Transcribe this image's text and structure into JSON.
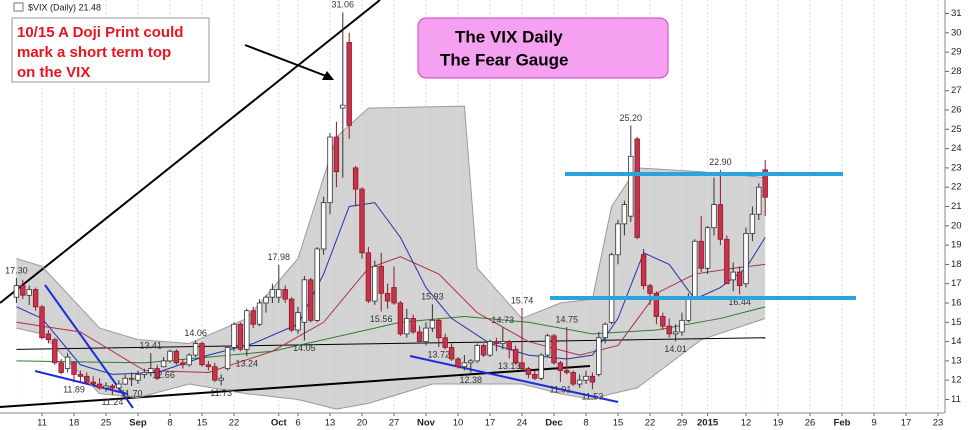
{
  "chart_data": {
    "type": "candlestick",
    "title": "$VIX (Daily) 21.48",
    "categories": [
      null,
      null,
      null,
      null,
      "11",
      null,
      null,
      null,
      null,
      "18",
      null,
      null,
      null,
      null,
      "25",
      null,
      null,
      null,
      null,
      "Sep",
      null,
      null,
      null,
      null,
      "8",
      null,
      null,
      null,
      null,
      "15",
      null,
      null,
      null,
      null,
      "22",
      null,
      null,
      null,
      null,
      null,
      null,
      "Oct",
      null,
      null,
      "6",
      null,
      null,
      null,
      null,
      "13",
      null,
      null,
      null,
      null,
      "20",
      null,
      null,
      null,
      null,
      "27",
      null,
      null,
      null,
      null,
      "Nov",
      null,
      null,
      null,
      null,
      "10",
      null,
      null,
      null,
      null,
      "17",
      null,
      null,
      null,
      null,
      "24",
      null,
      null,
      null,
      null,
      "Dec",
      null,
      null,
      null,
      null,
      "8",
      null,
      null,
      null,
      null,
      "15",
      null,
      null,
      null,
      null,
      "22",
      null,
      null,
      null,
      null,
      "29",
      null,
      null,
      null,
      "2015",
      null,
      null,
      null,
      null,
      null,
      "12",
      null,
      null,
      null,
      null,
      "19",
      null,
      null,
      null,
      null,
      "26",
      null,
      null,
      null,
      null,
      "Feb",
      null,
      null,
      null,
      null,
      "9",
      null,
      null,
      null,
      null,
      "17",
      null,
      null,
      null,
      null,
      "23"
    ],
    "ohlc": [
      [
        16.3,
        17.3,
        16.0,
        16.9
      ],
      [
        16.9,
        17.2,
        16.2,
        16.4
      ],
      [
        16.4,
        16.9,
        15.9,
        16.7
      ],
      [
        16.7,
        16.8,
        15.6,
        15.8
      ],
      [
        15.8,
        15.9,
        14.1,
        14.2
      ],
      [
        14.4,
        14.6,
        13.9,
        14.1
      ],
      [
        14.1,
        14.2,
        12.8,
        12.9
      ],
      [
        12.9,
        13.1,
        12.3,
        12.4
      ],
      [
        12.6,
        13.4,
        12.4,
        13.2
      ],
      [
        12.9,
        13.0,
        11.89,
        12.3
      ],
      [
        12.3,
        12.5,
        11.9,
        12.2
      ],
      [
        12.2,
        12.4,
        11.8,
        11.9
      ],
      [
        11.9,
        12.2,
        11.7,
        11.8
      ],
      [
        11.8,
        12.1,
        11.5,
        11.6
      ],
      [
        11.6,
        11.9,
        11.4,
        11.7
      ],
      [
        11.7,
        11.8,
        11.24,
        11.6
      ],
      [
        11.6,
        12.0,
        11.5,
        11.8
      ],
      [
        11.8,
        12.3,
        11.75,
        12.1
      ],
      [
        12.1,
        12.4,
        11.7,
        12.1
      ],
      [
        12.0,
        12.5,
        11.8,
        12.3
      ],
      [
        12.3,
        12.6,
        12.1,
        12.4
      ],
      [
        12.4,
        13.41,
        12.2,
        12.6
      ],
      [
        12.6,
        12.8,
        12.0,
        12.1
      ],
      [
        12.7,
        13.2,
        12.66,
        13.0
      ],
      [
        13.0,
        13.6,
        12.9,
        13.5
      ],
      [
        13.5,
        13.6,
        12.8,
        12.9
      ],
      [
        12.9,
        13.1,
        12.6,
        12.8
      ],
      [
        12.8,
        13.4,
        12.7,
        13.3
      ],
      [
        13.3,
        14.06,
        13.2,
        13.9
      ],
      [
        13.9,
        14.0,
        12.7,
        12.8
      ],
      [
        12.8,
        13.0,
        12.5,
        12.7
      ],
      [
        12.7,
        12.9,
        11.9,
        12.0
      ],
      [
        12.0,
        12.3,
        11.73,
        12.1
      ],
      [
        12.6,
        13.8,
        12.5,
        13.7
      ],
      [
        13.7,
        15.0,
        13.5,
        14.9
      ],
      [
        14.9,
        15.0,
        13.5,
        13.6
      ],
      [
        13.6,
        15.7,
        13.24,
        15.6
      ],
      [
        15.6,
        15.8,
        14.7,
        14.9
      ],
      [
        14.9,
        16.2,
        14.8,
        16.0
      ],
      [
        16.0,
        16.4,
        15.5,
        16.3
      ],
      [
        16.3,
        17.0,
        16.0,
        16.7
      ],
      [
        16.3,
        17.98,
        16.0,
        16.7
      ],
      [
        16.7,
        16.9,
        16.0,
        16.2
      ],
      [
        16.2,
        16.3,
        14.5,
        14.6
      ],
      [
        14.6,
        15.8,
        14.4,
        15.5
      ],
      [
        15.0,
        17.4,
        14.05,
        17.2
      ],
      [
        17.2,
        17.3,
        15.0,
        15.1
      ],
      [
        15.1,
        18.9,
        15.0,
        18.8
      ],
      [
        18.8,
        21.5,
        18.5,
        21.2
      ],
      [
        21.2,
        24.8,
        20.6,
        24.6
      ],
      [
        24.6,
        25.4,
        22.0,
        22.8
      ],
      [
        26.1,
        31.06,
        22.5,
        26.25
      ],
      [
        29.5,
        30.0,
        24.5,
        25.2
      ],
      [
        23.0,
        23.1,
        21.0,
        21.9
      ],
      [
        21.9,
        22.0,
        18.3,
        18.6
      ],
      [
        18.6,
        18.9,
        16.0,
        16.1
      ],
      [
        16.1,
        18.2,
        15.9,
        17.9
      ],
      [
        17.9,
        18.6,
        15.56,
        16.5
      ],
      [
        16.5,
        17.0,
        15.7,
        16.1
      ],
      [
        16.8,
        17.9,
        15.9,
        16.0
      ],
      [
        16.0,
        16.1,
        14.3,
        14.4
      ],
      [
        14.4,
        15.7,
        14.2,
        15.2
      ],
      [
        15.2,
        15.4,
        14.4,
        14.5
      ],
      [
        14.5,
        14.8,
        14.0,
        14.0
      ],
      [
        14.0,
        15.0,
        13.8,
        14.7
      ],
      [
        14.7,
        15.93,
        14.5,
        15.1
      ],
      [
        15.1,
        15.2,
        13.72,
        14.2
      ],
      [
        14.2,
        14.4,
        13.6,
        13.7
      ],
      [
        13.7,
        13.9,
        13.0,
        13.1
      ],
      [
        13.1,
        13.2,
        12.6,
        12.7
      ],
      [
        12.7,
        13.3,
        12.5,
        12.9
      ],
      [
        12.9,
        13.1,
        12.38,
        13.0
      ],
      [
        13.0,
        13.9,
        12.9,
        13.8
      ],
      [
        13.8,
        13.9,
        13.2,
        13.3
      ],
      [
        13.3,
        14.1,
        13.2,
        14.0
      ],
      [
        14.0,
        14.2,
        13.5,
        13.9
      ],
      [
        13.9,
        14.73,
        13.6,
        14.0
      ],
      [
        14.0,
        14.1,
        13.13,
        13.6
      ],
      [
        13.6,
        13.8,
        12.8,
        12.9
      ],
      [
        12.9,
        15.74,
        12.5,
        12.6
      ],
      [
        12.6,
        12.7,
        12.1,
        12.3
      ],
      [
        12.3,
        12.5,
        12.0,
        12.1
      ],
      [
        12.1,
        13.4,
        12.0,
        13.3
      ],
      [
        13.3,
        14.4,
        13.2,
        14.3
      ],
      [
        14.3,
        14.4,
        12.8,
        12.9
      ],
      [
        12.9,
        13.0,
        11.91,
        12.5
      ],
      [
        12.5,
        14.75,
        12.3,
        12.4
      ],
      [
        12.4,
        12.5,
        11.7,
        11.8
      ],
      [
        11.8,
        12.3,
        11.6,
        12.0
      ],
      [
        12.0,
        12.5,
        11.8,
        12.2
      ],
      [
        12.2,
        12.4,
        11.53,
        11.9
      ],
      [
        12.3,
        14.5,
        12.2,
        14.2
      ],
      [
        14.2,
        15.0,
        13.9,
        14.9
      ],
      [
        15.0,
        18.6,
        14.9,
        18.5
      ],
      [
        18.5,
        20.3,
        18.0,
        20.1
      ],
      [
        20.1,
        21.3,
        19.5,
        21.1
      ],
      [
        20.5,
        25.2,
        20.2,
        23.6
      ],
      [
        24.5,
        24.6,
        19.3,
        19.4
      ],
      [
        18.5,
        18.8,
        16.7,
        16.9
      ],
      [
        16.9,
        17.0,
        15.9,
        16.5
      ],
      [
        16.5,
        16.6,
        14.9,
        15.3
      ],
      [
        15.3,
        15.5,
        14.6,
        14.8
      ],
      [
        14.8,
        15.2,
        14.2,
        14.4
      ],
      [
        14.4,
        14.9,
        14.01,
        14.5
      ],
      [
        14.5,
        15.5,
        14.3,
        15.1
      ],
      [
        15.1,
        16.5,
        15.0,
        16.3
      ],
      [
        16.3,
        19.3,
        16.2,
        19.2
      ],
      [
        19.2,
        20.5,
        17.6,
        17.8
      ],
      [
        17.8,
        20.0,
        17.5,
        19.9
      ],
      [
        19.9,
        22.5,
        19.5,
        21.1
      ],
      [
        21.1,
        22.9,
        19.0,
        19.3
      ],
      [
        19.3,
        19.5,
        17.0,
        17.0
      ],
      [
        17.2,
        18.1,
        16.6,
        17.6
      ],
      [
        17.6,
        17.9,
        16.44,
        16.9
      ],
      [
        17.0,
        19.9,
        16.8,
        19.6
      ],
      [
        19.6,
        21.0,
        19.2,
        20.6
      ],
      [
        20.6,
        22.2,
        20.3,
        22.0
      ],
      [
        22.9,
        23.4,
        20.5,
        21.48
      ],
      null,
      null,
      null,
      null,
      null,
      null,
      null,
      null,
      null,
      null,
      null,
      null,
      null,
      null,
      null,
      null,
      null,
      null,
      null,
      null,
      null,
      null,
      null,
      null,
      null,
      null,
      null
    ],
    "up_color": "#ffffff",
    "down_color": "#c8324a",
    "overlays": [
      {
        "kind": "band-upper",
        "color": "#d3d3d3",
        "x": [
          0,
          4,
          13,
          19,
          27,
          36,
          44,
          50,
          55,
          70,
          72,
          79,
          85,
          90,
          93,
          97,
          107,
          117
        ],
        "values": [
          18.3,
          17.9,
          14.7,
          14.1,
          13.9,
          15.2,
          18.3,
          24.6,
          26.1,
          26.2,
          17.8,
          15.2,
          16.0,
          16.2,
          21.0,
          23.0,
          22.8,
          22.5
        ]
      },
      {
        "kind": "band-lower",
        "color": "#ffffff",
        "x": [
          0,
          4,
          13,
          19,
          27,
          36,
          44,
          50,
          55,
          65,
          70,
          79,
          85,
          90,
          93,
          97,
          103,
          107,
          117
        ],
        "values": [
          14.7,
          14.4,
          11.3,
          11.1,
          11.8,
          11.3,
          11.0,
          10.5,
          10.8,
          11.8,
          11.8,
          11.8,
          11.3,
          11.0,
          11.3,
          11.6,
          13.1,
          14.1,
          15.2
        ]
      },
      {
        "kind": "line",
        "color": "#000000",
        "x": [
          0,
          117
        ],
        "values": [
          13.6,
          14.2
        ]
      },
      {
        "kind": "line",
        "color": "#2f7d32",
        "x": [
          0,
          20,
          40,
          60,
          70,
          80,
          90,
          100,
          110,
          117
        ],
        "values": [
          13.0,
          12.9,
          13.5,
          15.0,
          15.3,
          15.0,
          14.4,
          14.6,
          15.2,
          15.8
        ]
      },
      {
        "kind": "line",
        "color": "#b0304a",
        "x": [
          0,
          10,
          20,
          30,
          40,
          48,
          55,
          60,
          66,
          72,
          80,
          88,
          94,
          100,
          106,
          112,
          117
        ],
        "values": [
          15.0,
          14.5,
          12.5,
          12.4,
          13.5,
          15.0,
          17.8,
          18.4,
          17.5,
          15.5,
          14.0,
          13.3,
          13.8,
          16.5,
          17.5,
          17.8,
          18.0
        ]
      },
      {
        "kind": "line",
        "color": "#2233aa",
        "x": [
          0,
          4,
          10,
          15,
          22,
          30,
          37,
          44,
          48,
          52,
          56,
          60,
          64,
          68,
          74,
          80,
          86,
          90,
          94,
          98,
          102,
          106,
          110,
          114,
          117
        ],
        "values": [
          15.8,
          15.2,
          12.8,
          12.3,
          12.4,
          13.3,
          13.9,
          14.9,
          17.5,
          21.0,
          21.2,
          19.4,
          16.8,
          15.2,
          13.9,
          13.3,
          13.1,
          13.3,
          15.2,
          18.6,
          18.0,
          16.2,
          16.8,
          17.8,
          19.4
        ]
      }
    ],
    "point_labels": [
      {
        "index": 0,
        "value": 17.3,
        "label": "17.30",
        "position": "above"
      },
      {
        "index": 9,
        "value": 11.89,
        "label": "11.89",
        "position": "below"
      },
      {
        "index": 15,
        "value": 11.24,
        "label": "11.24",
        "position": "below"
      },
      {
        "index": 21,
        "value": 13.41,
        "label": "13.41",
        "position": "above"
      },
      {
        "index": 23,
        "value": 12.66,
        "label": "12.66",
        "position": "below"
      },
      {
        "index": 18,
        "value": 11.7,
        "label": "11.70",
        "position": "below"
      },
      {
        "index": 28,
        "value": 14.06,
        "label": "14.06",
        "position": "above"
      },
      {
        "index": 32,
        "value": 11.73,
        "label": "11.73",
        "position": "below"
      },
      {
        "index": 36,
        "value": 13.24,
        "label": "13.24",
        "position": "below"
      },
      {
        "index": 41,
        "value": 17.98,
        "label": "17.98",
        "position": "above"
      },
      {
        "index": 45,
        "value": 14.05,
        "label": "14.05",
        "position": "below"
      },
      {
        "index": 51,
        "value": 31.06,
        "label": "31.06",
        "position": "above"
      },
      {
        "index": 57,
        "value": 15.56,
        "label": "15.56",
        "position": "below"
      },
      {
        "index": 65,
        "value": 15.93,
        "label": "15.93",
        "position": "above"
      },
      {
        "index": 66,
        "value": 13.72,
        "label": "13.72",
        "position": "below"
      },
      {
        "index": 71,
        "value": 12.38,
        "label": "12.38",
        "position": "below"
      },
      {
        "index": 76,
        "value": 14.73,
        "label": "14.73",
        "position": "above"
      },
      {
        "index": 77,
        "value": 13.13,
        "label": "13.13",
        "position": "below"
      },
      {
        "index": 79,
        "value": 15.74,
        "label": "15.74",
        "position": "above"
      },
      {
        "index": 85,
        "value": 11.91,
        "label": "11.91",
        "position": "below"
      },
      {
        "index": 86,
        "value": 14.75,
        "label": "14.75",
        "position": "above"
      },
      {
        "index": 90,
        "value": 11.53,
        "label": "11.53",
        "position": "below"
      },
      {
        "index": 96,
        "value": 25.2,
        "label": "25.20",
        "position": "above"
      },
      {
        "index": 103,
        "value": 14.01,
        "label": "14.01",
        "position": "below"
      },
      {
        "index": 110,
        "value": 22.9,
        "label": "22.90",
        "position": "above"
      },
      {
        "index": 113,
        "value": 16.44,
        "label": "16.44",
        "position": "below"
      }
    ],
    "ylim": [
      10.3,
      31.7
    ],
    "yticks": [
      11,
      12,
      13,
      14,
      15,
      16,
      17,
      18,
      19,
      20,
      21,
      22,
      23,
      24,
      25,
      26,
      27,
      28,
      29,
      30,
      31
    ],
    "axis_side": "right",
    "xgrid": true
  },
  "annotations": {
    "callout": [
      "10/15 A Doji Print could",
      "mark a short term top",
      "on the VIX"
    ],
    "title_box": [
      "The VIX Daily",
      "The Fear Gauge"
    ]
  }
}
